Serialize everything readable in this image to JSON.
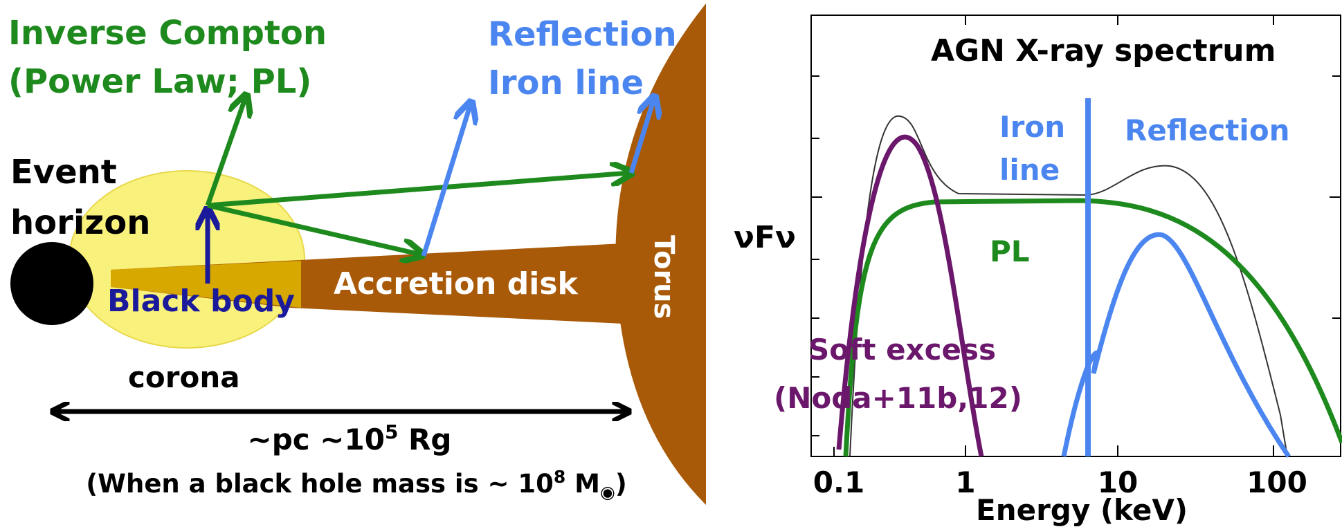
{
  "diagram": {
    "inverse_compton": [
      "Inverse Compton",
      "(Power Law; PL)"
    ],
    "reflection": [
      "Reflection",
      "Iron line"
    ],
    "event_horizon": [
      "Event",
      "horizon"
    ],
    "black_body": "Black body",
    "accretion_disk": "Accretion disk",
    "torus": "Torus",
    "corona": "corona",
    "scale": {
      "text": "~pc ~10",
      "exponent": "5",
      "unit": " Rg"
    },
    "mass_note": {
      "text": "(When a black hole mass is ~ 10",
      "exponent": "8",
      "unit": " M",
      "sub": "◉",
      "close": ")"
    }
  },
  "spectrum": {
    "title": "AGN X-ray spectrum",
    "iron_line": [
      "Iron",
      "line"
    ],
    "reflection": "Reflection",
    "y_label": "νFν",
    "pl": "PL",
    "soft_excess": [
      "Soft excess",
      "(Noda+11b,12)"
    ],
    "x_tick_labels": [
      "0.1",
      "1",
      "10",
      "100"
    ],
    "x_label": "Energy (keV)"
  }
}
